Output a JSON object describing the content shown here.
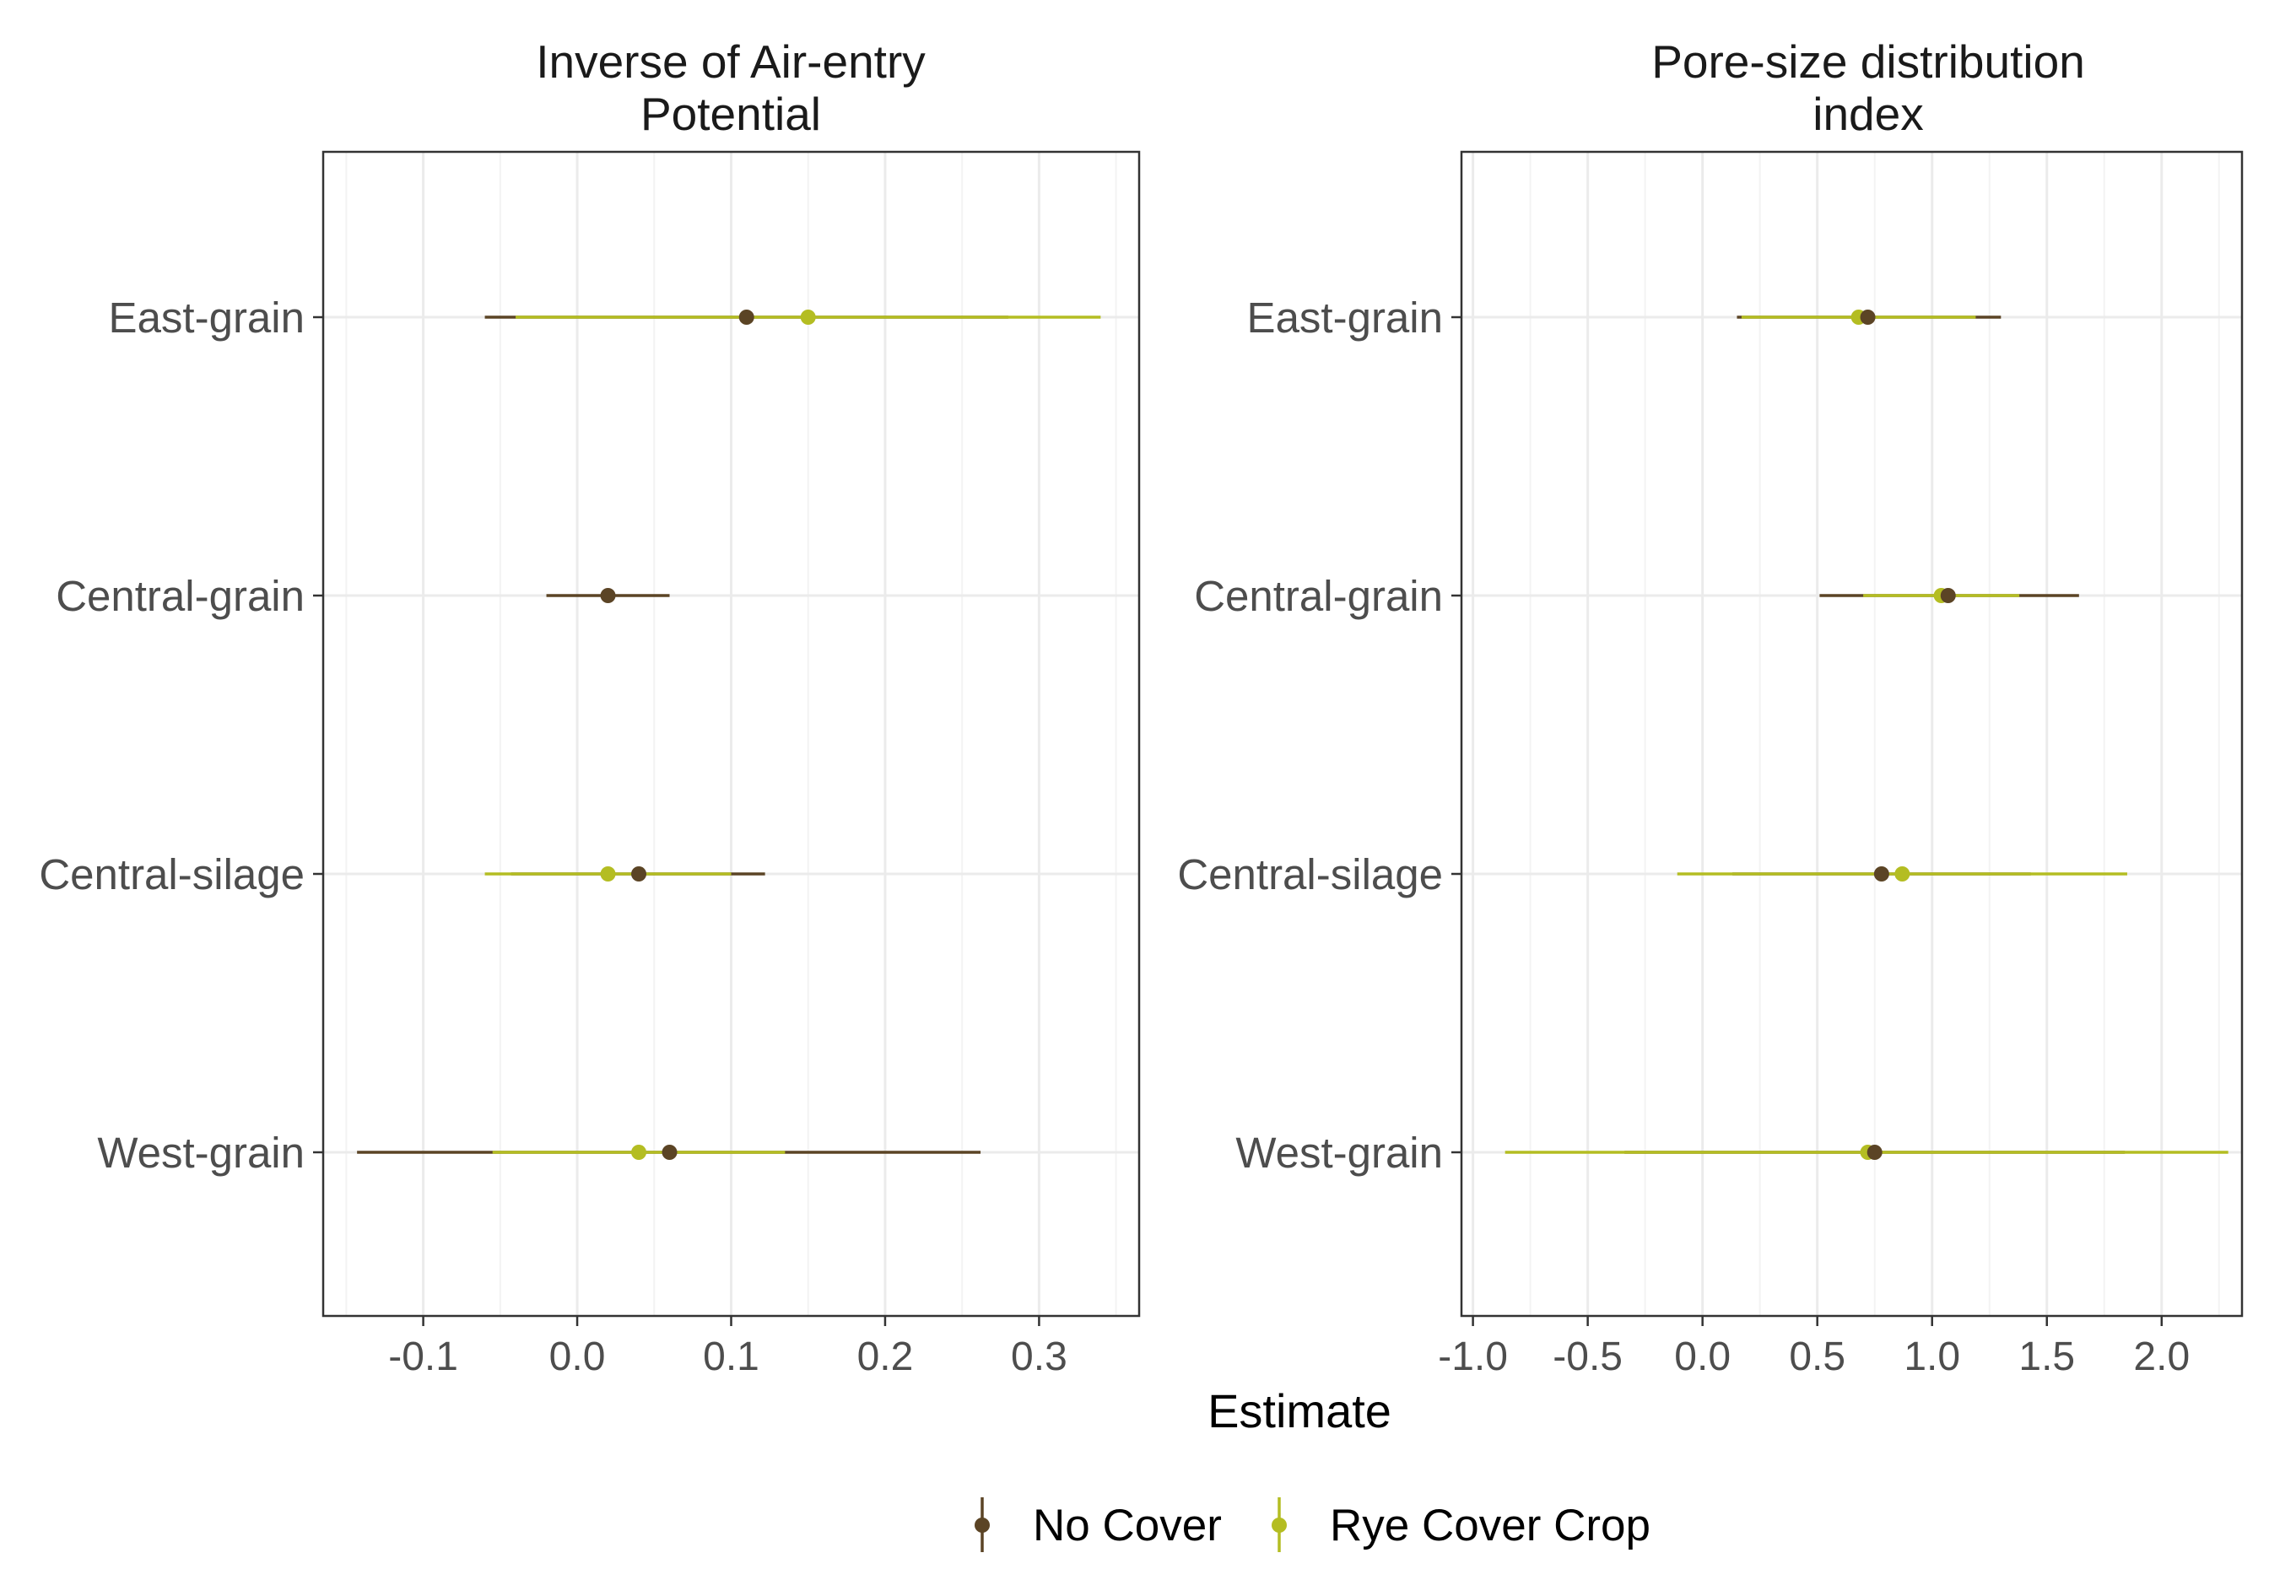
{
  "chart_data": [
    {
      "type": "scatter",
      "title": "Inverse of Air-entry\nPotential",
      "xlabel": "Estimate",
      "ylabel": "",
      "xlim": [
        -0.165,
        0.365
      ],
      "x_ticks": [
        -0.1,
        0.0,
        0.1,
        0.2,
        0.3
      ],
      "x_tick_labels": [
        "-0.1",
        "0.0",
        "0.1",
        "0.2",
        "0.3"
      ],
      "categories": [
        "East-grain",
        "Central-grain",
        "Central-silage",
        "West-grain"
      ],
      "grid": true,
      "series": [
        {
          "name": "No Cover",
          "points": [
            {
              "category": "East-grain",
              "estimate": 0.11,
              "lower": -0.06,
              "upper": 0.28
            },
            {
              "category": "Central-grain",
              "estimate": 0.02,
              "lower": -0.02,
              "upper": 0.06
            },
            {
              "category": "Central-silage",
              "estimate": 0.04,
              "lower": -0.043,
              "upper": 0.122
            },
            {
              "category": "West-grain",
              "estimate": 0.06,
              "lower": -0.143,
              "upper": 0.262
            }
          ]
        },
        {
          "name": "Rye Cover Crop",
          "points": [
            {
              "category": "East-grain",
              "estimate": 0.15,
              "lower": -0.04,
              "upper": 0.34
            },
            {
              "category": "Central-silage",
              "estimate": 0.02,
              "lower": -0.06,
              "upper": 0.1
            },
            {
              "category": "West-grain",
              "estimate": 0.04,
              "lower": -0.055,
              "upper": 0.135
            }
          ]
        }
      ]
    },
    {
      "type": "scatter",
      "title": "Pore-size distribution\nindex",
      "xlabel": "Estimate",
      "ylabel": "",
      "xlim": [
        -1.05,
        2.35
      ],
      "x_ticks": [
        -1.0,
        -0.5,
        0.0,
        0.5,
        1.0,
        1.5,
        2.0
      ],
      "x_tick_labels": [
        "-1.0",
        "-0.5",
        "0.0",
        "0.5",
        "1.0",
        "1.5",
        "2.0"
      ],
      "categories": [
        "East-grain",
        "Central-grain",
        "Central-silage",
        "West-grain"
      ],
      "grid": true,
      "series": [
        {
          "name": "No Cover",
          "points": [
            {
              "category": "East-grain",
              "estimate": 0.72,
              "lower": 0.15,
              "upper": 1.3
            },
            {
              "category": "Central-grain",
              "estimate": 1.07,
              "lower": 0.51,
              "upper": 1.64
            },
            {
              "category": "Central-silage",
              "estimate": 0.78,
              "lower": 0.13,
              "upper": 1.43
            },
            {
              "category": "West-grain",
              "estimate": 0.75,
              "lower": -0.34,
              "upper": 1.84
            }
          ]
        },
        {
          "name": "Rye Cover Crop",
          "points": [
            {
              "category": "East-grain",
              "estimate": 0.68,
              "lower": 0.17,
              "upper": 1.19
            },
            {
              "category": "Central-grain",
              "estimate": 1.04,
              "lower": 0.7,
              "upper": 1.38
            },
            {
              "category": "Central-silage",
              "estimate": 0.87,
              "lower": -0.11,
              "upper": 1.85
            },
            {
              "category": "West-grain",
              "estimate": 0.72,
              "lower": -0.86,
              "upper": 2.29
            }
          ]
        }
      ]
    }
  ],
  "shared_xlabel": "Estimate",
  "legend": {
    "placement": "bottom",
    "items": [
      {
        "name": "No Cover",
        "color": "#5b4425"
      },
      {
        "name": "Rye Cover Crop",
        "color": "#b4bd22"
      }
    ]
  },
  "colors": {
    "no_cover": "#5b4425",
    "rye_cover_crop": "#b4bd22",
    "grid": "#ebebeb",
    "panel_border": "#333333",
    "tick_text": "#4d4d4d"
  }
}
